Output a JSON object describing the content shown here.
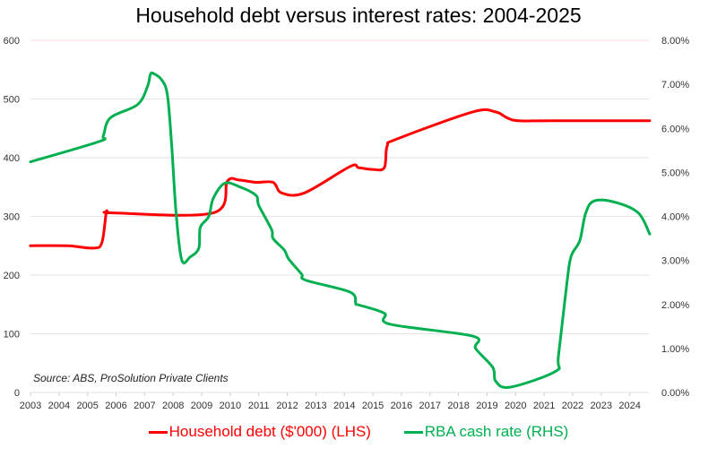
{
  "chart_data": {
    "type": "line",
    "title": "Household debt versus interest rates: 2004-2025",
    "annotation": "Source: ABS, ProSolution Private Clients",
    "x_ticks": [
      "2003",
      "2004",
      "2005",
      "2006",
      "2007",
      "2008",
      "2009",
      "2010",
      "2011",
      "2012",
      "2013",
      "2014",
      "2015",
      "2016",
      "2017",
      "2018",
      "2019",
      "2020",
      "2021",
      "2022",
      "2023",
      "2024"
    ],
    "xlim": [
      2003,
      2024.7
    ],
    "y_left": {
      "ticks": [
        "0",
        "100",
        "200",
        "300",
        "400",
        "500",
        "600"
      ],
      "range": [
        0,
        600
      ]
    },
    "y_right": {
      "ticks": [
        "0.00%",
        "1.00%",
        "2.00%",
        "3.00%",
        "4.00%",
        "5.00%",
        "6.00%",
        "7.00%",
        "8.00%"
      ],
      "range": [
        0,
        8
      ]
    },
    "grid": true,
    "legend_position": "bottom",
    "series": [
      {
        "name": "Household debt ($'000) (LHS)",
        "axis": "left",
        "color": "#ff0000",
        "points": [
          [
            2003,
            250
          ],
          [
            2004.3,
            250
          ],
          [
            2005.2,
            246
          ],
          [
            2005.5,
            255
          ],
          [
            2005.65,
            305
          ],
          [
            2005.7,
            308
          ],
          [
            2005.9,
            306
          ],
          [
            2009.4,
            306
          ],
          [
            2009.9,
            360
          ],
          [
            2010.3,
            362
          ],
          [
            2010.9,
            358
          ],
          [
            2011.5,
            358
          ],
          [
            2011.8,
            340
          ],
          [
            2012.6,
            340
          ],
          [
            2014.2,
            385
          ],
          [
            2014.5,
            383
          ],
          [
            2015.0,
            380
          ],
          [
            2015.4,
            383
          ],
          [
            2015.5,
            420
          ],
          [
            2015.85,
            432
          ],
          [
            2018.5,
            478
          ],
          [
            2019.3,
            478
          ],
          [
            2019.7,
            468
          ],
          [
            2020.1,
            463
          ],
          [
            2021.3,
            463
          ],
          [
            2024.7,
            463
          ]
        ]
      },
      {
        "name": "RBA cash rate (RHS)",
        "axis": "right",
        "color": "#00b050",
        "points": [
          [
            2003,
            5.24
          ],
          [
            2005.4,
            5.7
          ],
          [
            2005.55,
            5.83
          ],
          [
            2005.8,
            6.24
          ],
          [
            2006.75,
            6.54
          ],
          [
            2007.1,
            6.95
          ],
          [
            2007.2,
            7.22
          ],
          [
            2007.3,
            7.25
          ],
          [
            2007.6,
            7.1
          ],
          [
            2007.8,
            6.75
          ],
          [
            2007.95,
            5.6
          ],
          [
            2008.1,
            4.1
          ],
          [
            2008.3,
            3.01
          ],
          [
            2008.6,
            3.08
          ],
          [
            2008.9,
            3.28
          ],
          [
            2008.95,
            3.75
          ],
          [
            2009.25,
            4.0
          ],
          [
            2009.4,
            4.4
          ],
          [
            2009.8,
            4.75
          ],
          [
            2010.3,
            4.68
          ],
          [
            2010.9,
            4.48
          ],
          [
            2011.0,
            4.25
          ],
          [
            2011.45,
            3.7
          ],
          [
            2011.5,
            3.5
          ],
          [
            2011.9,
            3.23
          ],
          [
            2012.05,
            3.03
          ],
          [
            2012.5,
            2.69
          ],
          [
            2012.65,
            2.55
          ],
          [
            2014.2,
            2.28
          ],
          [
            2014.4,
            2.02
          ],
          [
            2014.5,
            1.99
          ],
          [
            2015.4,
            1.8
          ],
          [
            2015.6,
            1.55
          ],
          [
            2018.5,
            1.28
          ],
          [
            2018.6,
            1.0
          ],
          [
            2019.2,
            0.57
          ],
          [
            2019.3,
            0.26
          ],
          [
            2019.8,
            0.12
          ],
          [
            2021.4,
            0.48
          ],
          [
            2021.5,
            0.82
          ],
          [
            2021.8,
            2.5
          ],
          [
            2021.95,
            3.1
          ],
          [
            2022.25,
            3.45
          ],
          [
            2022.45,
            4.06
          ],
          [
            2022.75,
            4.35
          ],
          [
            2023.5,
            4.32
          ],
          [
            2024.3,
            4.08
          ],
          [
            2024.7,
            3.6
          ]
        ]
      }
    ]
  }
}
